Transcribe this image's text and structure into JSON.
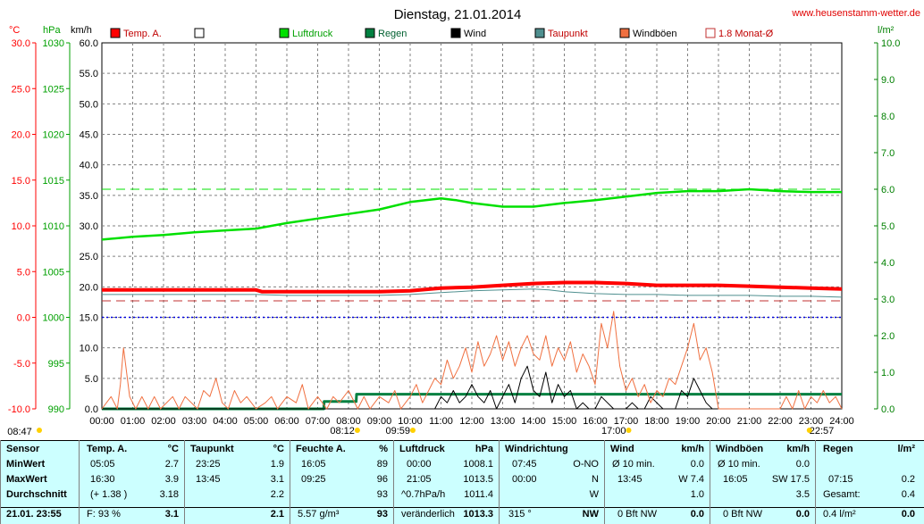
{
  "title": "Dienstag, 21.01.2014",
  "site": "www.heusenstamm-wetter.de",
  "units": {
    "temp": "°C",
    "pressure": "hPa",
    "wind": "km/h",
    "rain": "l/m²"
  },
  "colors": {
    "temp": "#ff0000",
    "pressure": "#00e000",
    "rain": "#008040",
    "wind": "#000000",
    "dew": "#4f8f8f",
    "gust": "#f07040",
    "monthavg": "#c03030",
    "grid": "#808080",
    "axis_left": "#ff0000",
    "axis_pressure": "#00a000",
    "axis_right": "#008000",
    "table_bg": "#ccffff"
  },
  "legend": [
    "Temp. A.",
    "",
    "Luftdruck",
    "Regen",
    "Wind",
    "Taupunkt",
    "Windböen",
    "1.8 Monat-Ø"
  ],
  "chart_data": {
    "type": "line",
    "x_labels": [
      "00:00",
      "01:00",
      "02:00",
      "03:00",
      "04:00",
      "05:00",
      "06:00",
      "07:00",
      "08:00",
      "09:00",
      "10:00",
      "11:00",
      "12:00",
      "13:00",
      "14:00",
      "15:00",
      "16:00",
      "17:00",
      "18:00",
      "19:00",
      "20:00",
      "21:00",
      "22:00",
      "23:00",
      "24:00"
    ],
    "xlim": [
      0,
      24
    ],
    "axes": {
      "temp": {
        "ticks": [
          "30.0",
          "25.0",
          "20.0",
          "15.0",
          "10.0",
          "5.0",
          "0.0",
          "-5.0",
          "-10.0"
        ],
        "ylim": [
          -10,
          30
        ]
      },
      "pressure": {
        "ticks": [
          "1030",
          "1025",
          "1020",
          "1015",
          "1010",
          "1005",
          "1000",
          "995",
          "990"
        ],
        "ylim": [
          990,
          1030
        ]
      },
      "wind": {
        "ticks": [
          "60.0",
          "55.0",
          "50.0",
          "45.0",
          "40.0",
          "35.0",
          "30.0",
          "25.0",
          "20.0",
          "15.0",
          "10.0",
          "5.0",
          "0.0"
        ],
        "ylim": [
          0,
          60
        ]
      },
      "rain": {
        "ticks": [
          "10.0",
          "9.0",
          "8.0",
          "7.0",
          "6.0",
          "5.0",
          "4.0",
          "3.0",
          "2.0",
          "1.0",
          "0.0"
        ],
        "ylim": [
          0,
          10
        ]
      }
    },
    "series": [
      {
        "name": "Temp. A.",
        "axis": "temp",
        "color": "#ff0000",
        "x": [
          0,
          1,
          2,
          3,
          4,
          5,
          5.2,
          6,
          7,
          8,
          9,
          10,
          11,
          12,
          13,
          14,
          15,
          16,
          17,
          18,
          19,
          20,
          21,
          22,
          23,
          24
        ],
        "y": [
          3.0,
          3.0,
          3.0,
          3.0,
          3.0,
          3.0,
          2.8,
          2.8,
          2.8,
          2.8,
          2.8,
          2.9,
          3.2,
          3.3,
          3.5,
          3.7,
          3.8,
          3.8,
          3.7,
          3.5,
          3.5,
          3.5,
          3.4,
          3.3,
          3.2,
          3.1
        ]
      },
      {
        "name": "Taupunkt",
        "axis": "temp",
        "color": "#4f8f8f",
        "x": [
          0,
          5,
          6,
          9,
          10,
          11,
          12,
          13,
          14,
          14.5,
          15,
          16,
          17,
          18,
          19,
          20,
          21,
          22,
          23,
          24
        ],
        "y": [
          2.5,
          2.5,
          2.4,
          2.4,
          2.5,
          2.7,
          2.9,
          3.0,
          3.1,
          3.0,
          2.8,
          2.6,
          2.5,
          2.5,
          2.4,
          2.4,
          2.4,
          2.3,
          2.3,
          2.2
        ]
      },
      {
        "name": "Luftdruck",
        "axis": "pressure",
        "color": "#00e000",
        "x": [
          0,
          1,
          2,
          3,
          4,
          5,
          6,
          7,
          8,
          9,
          10,
          10.5,
          11,
          11.5,
          12,
          13,
          14,
          15,
          16,
          17,
          18,
          19,
          20,
          21,
          22,
          23,
          24
        ],
        "y": [
          1008.5,
          1008.8,
          1009.0,
          1009.3,
          1009.5,
          1009.7,
          1010.3,
          1010.8,
          1011.3,
          1011.8,
          1012.6,
          1012.8,
          1013.0,
          1012.8,
          1012.5,
          1012.1,
          1012.1,
          1012.5,
          1012.8,
          1013.2,
          1013.6,
          1013.8,
          1013.8,
          1014.0,
          1013.8,
          1013.7,
          1013.7
        ]
      },
      {
        "name": "Regen",
        "axis": "rain",
        "color": "#008040",
        "x": [
          0,
          7.2,
          7.21,
          8.25,
          8.26,
          24
        ],
        "y": [
          0,
          0,
          0.2,
          0.2,
          0.4,
          0.4
        ]
      },
      {
        "name": "Wind",
        "axis": "wind",
        "color": "#000000",
        "x": [
          0,
          10.8,
          11.0,
          11.2,
          11.4,
          11.6,
          11.8,
          12.0,
          12.2,
          12.4,
          12.6,
          12.8,
          13.0,
          13.2,
          13.4,
          13.6,
          13.8,
          14.0,
          14.2,
          14.4,
          14.6,
          14.8,
          15.0,
          15.2,
          15.4,
          15.6,
          15.8,
          16.0,
          16.2,
          16.4,
          16.6,
          16.8,
          17.0,
          17.2,
          17.4,
          17.6,
          17.8,
          18.0,
          18.2,
          18.4,
          18.6,
          18.8,
          19.0,
          19.2,
          19.4,
          19.6,
          19.8,
          24
        ],
        "y": [
          0,
          0,
          2,
          1,
          3,
          1,
          2,
          4,
          2,
          1,
          3,
          0,
          2,
          4,
          1,
          5,
          7,
          3,
          2,
          6,
          1,
          4,
          2,
          3,
          0,
          1,
          0,
          0,
          2,
          1,
          0,
          0,
          0,
          1,
          0,
          0,
          2,
          1,
          0,
          0,
          0,
          3,
          2,
          5,
          3,
          1,
          0,
          0
        ]
      },
      {
        "name": "Windböen",
        "axis": "wind",
        "color": "#f07040",
        "x": [
          0,
          0.3,
          0.5,
          0.6,
          0.7,
          0.9,
          1.1,
          1.3,
          1.5,
          1.7,
          1.9,
          2.3,
          2.5,
          2.7,
          3.1,
          3.3,
          3.5,
          3.7,
          3.9,
          4.1,
          4.3,
          4.5,
          4.7,
          5.0,
          5.3,
          5.5,
          5.7,
          6.0,
          6.3,
          6.5,
          6.7,
          7.0,
          7.3,
          7.5,
          7.7,
          8.0,
          8.3,
          8.5,
          8.7,
          9.0,
          9.3,
          9.5,
          9.7,
          10.0,
          10.2,
          10.4,
          10.6,
          10.8,
          11.0,
          11.2,
          11.4,
          11.6,
          11.8,
          12.0,
          12.2,
          12.4,
          12.6,
          12.8,
          13.0,
          13.2,
          13.4,
          13.6,
          13.8,
          14.0,
          14.2,
          14.4,
          14.6,
          14.8,
          15.0,
          15.2,
          15.4,
          15.6,
          15.8,
          16.0,
          16.2,
          16.4,
          16.6,
          16.8,
          17.0,
          17.2,
          17.4,
          17.6,
          17.8,
          18.0,
          18.2,
          18.4,
          18.6,
          18.8,
          19.0,
          19.2,
          19.4,
          19.6,
          19.8,
          20.0,
          21.0,
          22.0,
          22.2,
          22.4,
          22.6,
          22.8,
          23.0,
          23.2,
          23.4,
          23.6,
          23.8,
          24
        ],
        "y": [
          0,
          2,
          0,
          4,
          10,
          2,
          0,
          2,
          0,
          2,
          0,
          2,
          0,
          2,
          0,
          3,
          2,
          5,
          1,
          0,
          3,
          1,
          2,
          0,
          1,
          2,
          0,
          2,
          1,
          4,
          0,
          2,
          0,
          2,
          1,
          3,
          0,
          2,
          0,
          2,
          1,
          3,
          0,
          2,
          4,
          1,
          3,
          5,
          4,
          8,
          5,
          7,
          10,
          6,
          11,
          7,
          9,
          12,
          8,
          11,
          7,
          10,
          12,
          9,
          8,
          12,
          7,
          10,
          8,
          11,
          6,
          9,
          7,
          4,
          14,
          10,
          16,
          7,
          3,
          5,
          2,
          4,
          1,
          3,
          2,
          5,
          4,
          7,
          10,
          14,
          8,
          10,
          6,
          0,
          0,
          0,
          2,
          0,
          3,
          0,
          2,
          1,
          3,
          1,
          2,
          0
        ]
      },
      {
        "name": "1.8 Monat-Ø",
        "axis": "temp",
        "color": "#c03030",
        "x": [
          0,
          24
        ],
        "y": [
          1.8,
          1.8
        ]
      },
      {
        "name": "",
        "axis": "pressure",
        "color": "#00e000",
        "x": [
          0,
          24
        ],
        "y": [
          1014.0,
          1014.0
        ]
      },
      {
        "name": "",
        "axis": "temp",
        "color": "#0000e0",
        "x": [
          0,
          24
        ],
        "y": [
          0.0,
          0.0
        ]
      }
    ],
    "markers": [
      {
        "label": "08:47",
        "x": 0
      },
      {
        "label": "08:12",
        "x": 8.2
      },
      {
        "label": "09:59",
        "x": 10.0
      },
      {
        "label": "17:00",
        "x": 17.0
      },
      {
        "label": "22:57",
        "x": 22.95
      }
    ]
  },
  "table": {
    "headers": [
      "Sensor",
      "Temp. A.",
      "°C",
      "Taupunkt",
      "°C",
      "Feuchte A.",
      "%",
      "Luftdruck",
      "hPa",
      "Windrichtung",
      "Wind",
      "km/h",
      "Windböen",
      "km/h",
      "Regen",
      "l/m²"
    ],
    "row_labels": [
      "MinWert",
      "MaxWert",
      "Durchschnitt",
      "21.01. 23:55"
    ],
    "temp": [
      [
        "05:05",
        "2.7"
      ],
      [
        "16:30",
        "3.9"
      ],
      [
        "(+ 1.38 )",
        "3.18"
      ],
      [
        "F: 93 %",
        "3.1"
      ]
    ],
    "dew": [
      [
        "23:25",
        "1.9"
      ],
      [
        "13:45",
        "3.1"
      ],
      [
        "",
        "2.2"
      ],
      [
        "",
        "2.1"
      ]
    ],
    "hum": [
      [
        "16:05",
        "89"
      ],
      [
        "09:25",
        "96"
      ],
      [
        "",
        "93"
      ],
      [
        "5.57 g/m³",
        "93"
      ]
    ],
    "press": [
      [
        "00:00",
        "1008.1"
      ],
      [
        "21:05",
        "1013.5"
      ],
      [
        "^0.7hPa/h",
        "1011.4"
      ],
      [
        "veränderlich",
        "1013.3"
      ]
    ],
    "wdir": [
      [
        "07:45",
        "O-NO"
      ],
      [
        "00:00",
        "N"
      ],
      [
        "",
        "W"
      ],
      [
        "315 °",
        "NW"
      ]
    ],
    "wind": [
      [
        "Ø 10 min.",
        "0.0"
      ],
      [
        "13:45",
        "W 7.4"
      ],
      [
        "",
        "1.0"
      ],
      [
        "0 Bft NW",
        "0.0"
      ]
    ],
    "gust": [
      [
        "Ø 10 min.",
        "0.0"
      ],
      [
        "16:05",
        "SW 17.5"
      ],
      [
        "",
        "3.5"
      ],
      [
        "0 Bft NW",
        "0.0"
      ]
    ],
    "rain": [
      [
        "",
        ""
      ],
      [
        "07:15",
        "0.2"
      ],
      [
        "Gesamt:",
        "0.4"
      ],
      [
        "0.4 l/m²",
        "0.0"
      ]
    ]
  }
}
